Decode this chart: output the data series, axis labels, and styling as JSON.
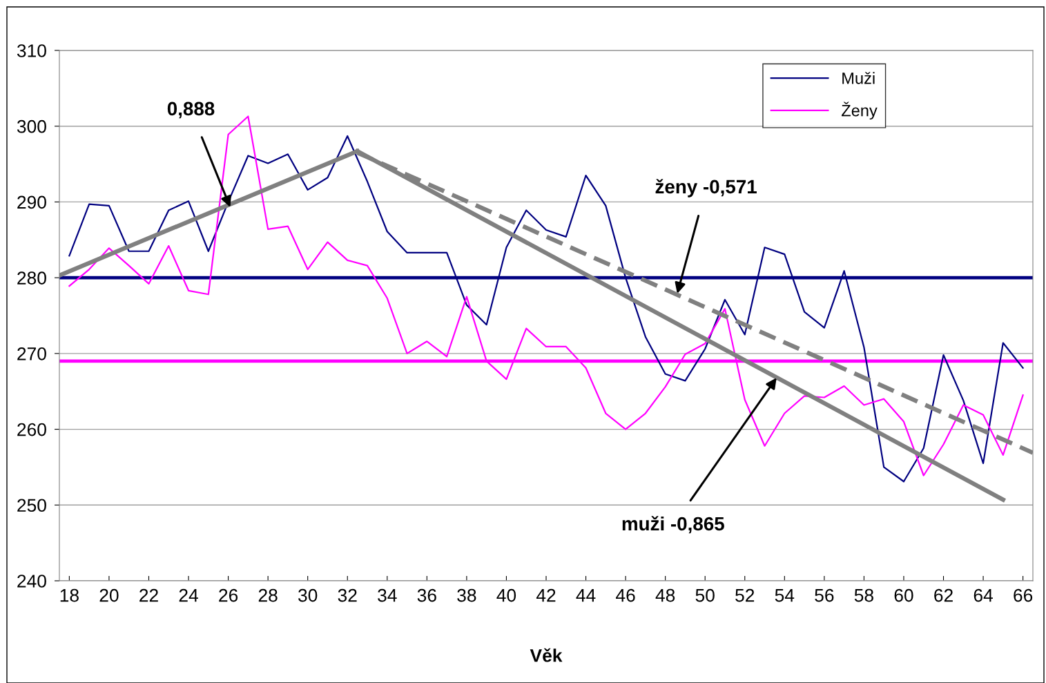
{
  "chart_data": {
    "type": "line",
    "xlabel": "Věk",
    "x": [
      18,
      19,
      20,
      21,
      22,
      23,
      24,
      25,
      26,
      27,
      28,
      29,
      30,
      31,
      32,
      33,
      34,
      35,
      36,
      37,
      38,
      39,
      40,
      41,
      42,
      43,
      44,
      45,
      46,
      47,
      48,
      49,
      50,
      51,
      52,
      53,
      54,
      55,
      56,
      57,
      58,
      59,
      60,
      61,
      62,
      63,
      64,
      65,
      66
    ],
    "series": [
      {
        "name": "Muži",
        "color": "#000080",
        "values": [
          282.9,
          289.7,
          289.5,
          283.5,
          283.5,
          288.9,
          290.1,
          283.5,
          290.0,
          296.1,
          295.1,
          296.3,
          291.6,
          293.2,
          298.7,
          292.7,
          286.1,
          283.3,
          283.3,
          283.3,
          276.4,
          273.8,
          284.0,
          288.9,
          286.3,
          285.4,
          293.5,
          289.5,
          280.0,
          272.2,
          267.3,
          266.4,
          270.6,
          277.1,
          272.5,
          284.0,
          283.1,
          275.5,
          273.4,
          280.9,
          270.8,
          255.0,
          253.1,
          257.5,
          269.8,
          263.8,
          255.5,
          271.4,
          268.1
        ]
      },
      {
        "name": "Ženy",
        "color": "#ff00ff",
        "values": [
          278.9,
          281.1,
          283.9,
          281.6,
          279.2,
          284.2,
          278.3,
          277.8,
          298.9,
          301.3,
          286.4,
          286.8,
          281.1,
          284.7,
          282.3,
          281.6,
          277.3,
          270.0,
          271.6,
          269.6,
          277.5,
          269.0,
          266.6,
          273.3,
          270.9,
          270.9,
          268.1,
          262.1,
          260.0,
          262.1,
          265.6,
          269.9,
          271.3,
          275.9,
          263.9,
          257.8,
          262.1,
          264.4,
          264.2,
          265.7,
          263.2,
          264.0,
          261.0,
          253.9,
          258.0,
          263.2,
          261.9,
          256.6,
          264.5
        ]
      },
      {
        "type": "line",
        "color": "#808080",
        "x": [
          17.5,
          32.5
        ],
        "values": [
          280.3,
          296.7
        ]
      },
      {
        "type": "line",
        "color": "#808080",
        "x": [
          32.5,
          65
        ],
        "values": [
          296.7,
          250.7
        ]
      },
      {
        "type": "line",
        "color": "#808080",
        "line_style": "dashed",
        "x": [
          32.5,
          66.5
        ],
        "values": [
          296.5,
          256.9
        ]
      }
    ],
    "ref_lines": [
      {
        "axis": "y",
        "value": 280,
        "color": "#000080"
      },
      {
        "axis": "y",
        "value": 269,
        "color": "#ff00ff"
      }
    ],
    "annotations": [
      {
        "text": "0,888",
        "x": 26.1,
        "y": 289.3
      },
      {
        "text": "ženy -0,571",
        "x": 48.6,
        "y": 277.9
      },
      {
        "text": "muži -0,865",
        "x": 53.6,
        "y": 266.8
      }
    ],
    "xlim": [
      17.5,
      66.5
    ],
    "xticks": [
      18,
      20,
      22,
      24,
      26,
      28,
      30,
      32,
      34,
      36,
      38,
      40,
      42,
      44,
      46,
      48,
      50,
      52,
      54,
      56,
      58,
      60,
      62,
      64,
      66
    ],
    "ylim": [
      240,
      310
    ],
    "yticks": [
      240,
      250,
      260,
      270,
      280,
      290,
      300,
      310
    ],
    "grid": "y",
    "legend": "top right",
    "marker": "none",
    "line_style": "solid"
  }
}
